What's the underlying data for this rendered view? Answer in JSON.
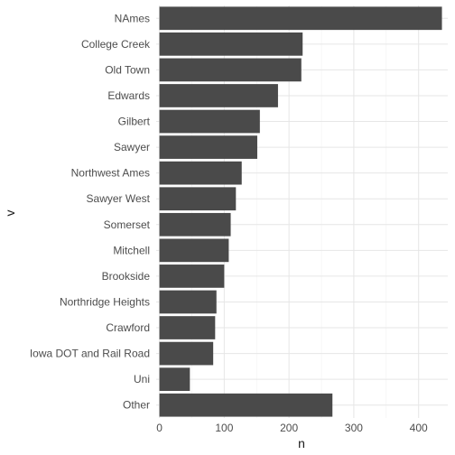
{
  "chart_data": {
    "type": "bar",
    "orientation": "horizontal",
    "xlabel": "n",
    "ylabel": "v",
    "xlim": [
      -5,
      445
    ],
    "x_ticks": [
      0,
      100,
      200,
      300,
      400
    ],
    "grid": true,
    "bar_color": "#4a4a4a",
    "categories": [
      "NAmes",
      "College Creek",
      "Old Town",
      "Edwards",
      "Gilbert",
      "Sawyer",
      "Northwest Ames",
      "Sawyer West",
      "Somerset",
      "Mitchell",
      "Brookside",
      "Northridge Heights",
      "Crawford",
      "Iowa DOT and Rail Road",
      "Uni",
      "Other"
    ],
    "values": [
      436,
      221,
      219,
      183,
      155,
      151,
      127,
      118,
      110,
      107,
      100,
      88,
      86,
      83,
      47,
      267
    ]
  }
}
